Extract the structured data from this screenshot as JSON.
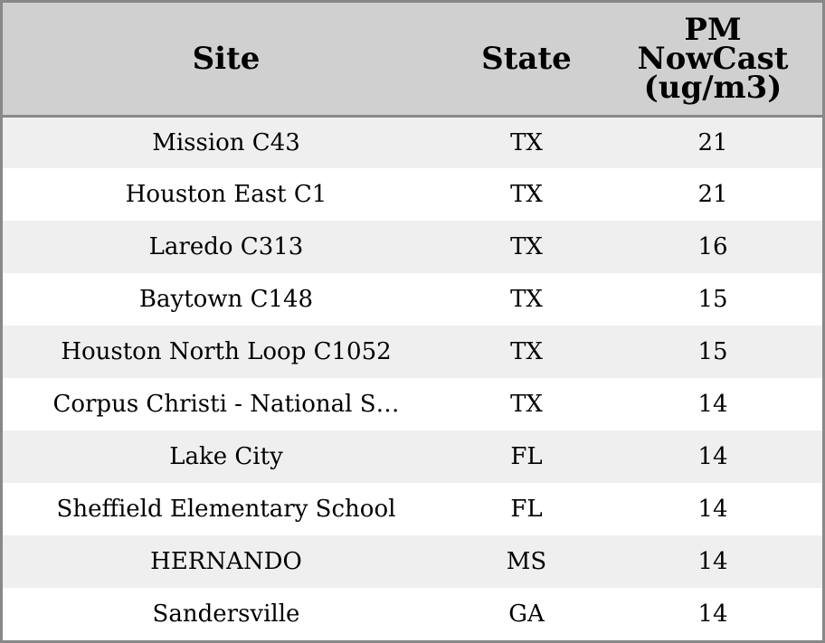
{
  "colors": {
    "header_bg": "#d0d0d0",
    "row_alt_bg": "#efefef",
    "row_bg": "#ffffff",
    "border": "#888888"
  },
  "chart_data": {
    "type": "table",
    "columns": [
      "Site",
      "State",
      "PM NowCast (ug/m3)"
    ],
    "rows": [
      [
        "Mission C43",
        "TX",
        "21"
      ],
      [
        "Houston East C1",
        "TX",
        "21"
      ],
      [
        "Laredo C313",
        "TX",
        "16"
      ],
      [
        "Baytown C148",
        "TX",
        "15"
      ],
      [
        "Houston North Loop C1052",
        "TX",
        "15"
      ],
      [
        "Corpus Christi - National S…",
        "TX",
        "14"
      ],
      [
        "Lake City",
        "FL",
        "14"
      ],
      [
        "Sheffield Elementary School",
        "FL",
        "14"
      ],
      [
        "HERNANDO",
        "MS",
        "14"
      ],
      [
        "Sandersville",
        "GA",
        "14"
      ]
    ]
  }
}
